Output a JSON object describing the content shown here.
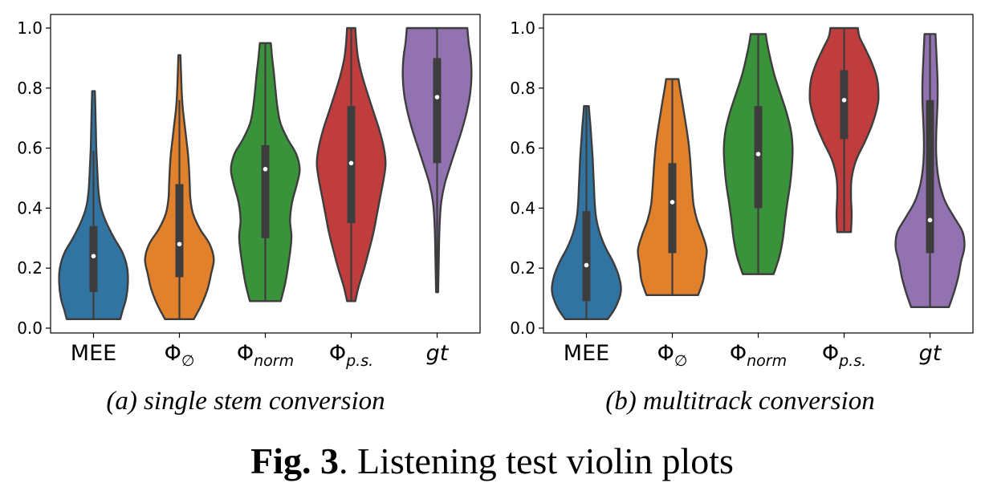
{
  "figure": {
    "label": "Fig. 3",
    "caption": ". Listening test violin plots"
  },
  "categories": [
    {
      "base": "MEE",
      "sub": "",
      "italic": false
    },
    {
      "base": "Φ",
      "sub": "∅",
      "italic": false
    },
    {
      "base": "Φ",
      "sub": "norm",
      "italic": true
    },
    {
      "base": "Φ",
      "sub": "p.s.",
      "italic": true
    },
    {
      "base": "gt",
      "sub": "",
      "italic": true
    }
  ],
  "colors": [
    "#3274a1",
    "#e1812c",
    "#3a923a",
    "#c03d3e",
    "#9372b2"
  ],
  "chart_data": [
    {
      "type": "violin",
      "caption": "(a) single stem conversion",
      "ylim": [
        0,
        1.05
      ],
      "yticks": [
        "0.0",
        "0.2",
        "0.4",
        "0.6",
        "0.8",
        "1.0"
      ],
      "categories": [
        "MEE",
        "Φ∅",
        "Φnorm",
        "Φp.s.",
        "gt"
      ],
      "violins": [
        {
          "min": 0.03,
          "q1": 0.12,
          "median": 0.24,
          "q3": 0.34,
          "whisker_low": 0.03,
          "whisker_high": 0.59,
          "max": 0.79,
          "density": [
            [
              0.03,
              0.78
            ],
            [
              0.06,
              0.85
            ],
            [
              0.1,
              0.95
            ],
            [
              0.15,
              1.0
            ],
            [
              0.2,
              0.98
            ],
            [
              0.25,
              0.85
            ],
            [
              0.3,
              0.6
            ],
            [
              0.35,
              0.38
            ],
            [
              0.4,
              0.22
            ],
            [
              0.45,
              0.15
            ],
            [
              0.5,
              0.12
            ],
            [
              0.55,
              0.1
            ],
            [
              0.6,
              0.08
            ],
            [
              0.65,
              0.07
            ],
            [
              0.7,
              0.06
            ],
            [
              0.75,
              0.05
            ],
            [
              0.79,
              0.04
            ]
          ]
        },
        {
          "min": 0.03,
          "q1": 0.17,
          "median": 0.28,
          "q3": 0.48,
          "whisker_low": 0.03,
          "whisker_high": 0.76,
          "max": 0.91,
          "density": [
            [
              0.03,
              0.42
            ],
            [
              0.08,
              0.65
            ],
            [
              0.13,
              0.82
            ],
            [
              0.18,
              0.92
            ],
            [
              0.23,
              1.0
            ],
            [
              0.28,
              0.88
            ],
            [
              0.33,
              0.6
            ],
            [
              0.38,
              0.4
            ],
            [
              0.43,
              0.32
            ],
            [
              0.48,
              0.3
            ],
            [
              0.53,
              0.28
            ],
            [
              0.58,
              0.25
            ],
            [
              0.63,
              0.2
            ],
            [
              0.68,
              0.15
            ],
            [
              0.73,
              0.1
            ],
            [
              0.78,
              0.07
            ],
            [
              0.84,
              0.05
            ],
            [
              0.91,
              0.03
            ]
          ]
        },
        {
          "min": 0.09,
          "q1": 0.3,
          "median": 0.53,
          "q3": 0.61,
          "whisker_low": 0.09,
          "whisker_high": 0.95,
          "max": 0.95,
          "density": [
            [
              0.09,
              0.45
            ],
            [
              0.15,
              0.58
            ],
            [
              0.22,
              0.68
            ],
            [
              0.3,
              0.76
            ],
            [
              0.36,
              0.72
            ],
            [
              0.42,
              0.78
            ],
            [
              0.48,
              0.92
            ],
            [
              0.53,
              1.0
            ],
            [
              0.58,
              0.9
            ],
            [
              0.63,
              0.65
            ],
            [
              0.68,
              0.45
            ],
            [
              0.73,
              0.36
            ],
            [
              0.79,
              0.3
            ],
            [
              0.85,
              0.25
            ],
            [
              0.9,
              0.2
            ],
            [
              0.95,
              0.16
            ]
          ]
        },
        {
          "min": 0.09,
          "q1": 0.35,
          "median": 0.55,
          "q3": 0.74,
          "whisker_low": 0.09,
          "whisker_high": 1.0,
          "max": 1.0,
          "density": [
            [
              0.09,
              0.12
            ],
            [
              0.14,
              0.22
            ],
            [
              0.2,
              0.38
            ],
            [
              0.26,
              0.52
            ],
            [
              0.32,
              0.65
            ],
            [
              0.38,
              0.75
            ],
            [
              0.44,
              0.85
            ],
            [
              0.5,
              0.95
            ],
            [
              0.55,
              1.0
            ],
            [
              0.6,
              0.95
            ],
            [
              0.66,
              0.82
            ],
            [
              0.72,
              0.65
            ],
            [
              0.78,
              0.48
            ],
            [
              0.84,
              0.32
            ],
            [
              0.9,
              0.2
            ],
            [
              0.95,
              0.15
            ],
            [
              1.0,
              0.12
            ]
          ]
        },
        {
          "min": 0.12,
          "q1": 0.55,
          "median": 0.77,
          "q3": 0.9,
          "whisker_low": 0.12,
          "whisker_high": 1.0,
          "max": 1.0,
          "density": [
            [
              0.12,
              0.03
            ],
            [
              0.18,
              0.04
            ],
            [
              0.24,
              0.05
            ],
            [
              0.3,
              0.06
            ],
            [
              0.36,
              0.08
            ],
            [
              0.42,
              0.12
            ],
            [
              0.48,
              0.22
            ],
            [
              0.54,
              0.38
            ],
            [
              0.6,
              0.55
            ],
            [
              0.66,
              0.72
            ],
            [
              0.72,
              0.86
            ],
            [
              0.78,
              0.96
            ],
            [
              0.84,
              1.0
            ],
            [
              0.9,
              0.98
            ],
            [
              0.95,
              0.92
            ],
            [
              1.0,
              0.88
            ]
          ]
        }
      ]
    },
    {
      "type": "violin",
      "caption": "(b) multitrack conversion",
      "ylim": [
        0,
        1.05
      ],
      "yticks": [
        "0.0",
        "0.2",
        "0.4",
        "0.6",
        "0.8",
        "1.0"
      ],
      "categories": [
        "MEE",
        "Φ∅",
        "Φnorm",
        "Φp.s.",
        "gt"
      ],
      "violins": [
        {
          "min": 0.03,
          "q1": 0.09,
          "median": 0.21,
          "q3": 0.39,
          "whisker_low": 0.03,
          "whisker_high": 0.74,
          "max": 0.74,
          "density": [
            [
              0.03,
              0.62
            ],
            [
              0.07,
              0.85
            ],
            [
              0.12,
              1.0
            ],
            [
              0.17,
              0.95
            ],
            [
              0.22,
              0.78
            ],
            [
              0.27,
              0.55
            ],
            [
              0.32,
              0.38
            ],
            [
              0.37,
              0.28
            ],
            [
              0.42,
              0.24
            ],
            [
              0.47,
              0.22
            ],
            [
              0.52,
              0.2
            ],
            [
              0.57,
              0.18
            ],
            [
              0.62,
              0.15
            ],
            [
              0.67,
              0.12
            ],
            [
              0.71,
              0.09
            ],
            [
              0.74,
              0.07
            ]
          ]
        },
        {
          "min": 0.11,
          "q1": 0.25,
          "median": 0.42,
          "q3": 0.55,
          "whisker_low": 0.11,
          "whisker_high": 0.83,
          "max": 0.83,
          "density": [
            [
              0.11,
              0.75
            ],
            [
              0.16,
              0.9
            ],
            [
              0.21,
              0.95
            ],
            [
              0.26,
              1.0
            ],
            [
              0.31,
              0.88
            ],
            [
              0.36,
              0.72
            ],
            [
              0.41,
              0.62
            ],
            [
              0.46,
              0.58
            ],
            [
              0.51,
              0.55
            ],
            [
              0.56,
              0.52
            ],
            [
              0.61,
              0.48
            ],
            [
              0.66,
              0.42
            ],
            [
              0.71,
              0.35
            ],
            [
              0.76,
              0.28
            ],
            [
              0.8,
              0.22
            ],
            [
              0.83,
              0.18
            ]
          ]
        },
        {
          "min": 0.18,
          "q1": 0.4,
          "median": 0.58,
          "q3": 0.74,
          "whisker_low": 0.18,
          "whisker_high": 0.98,
          "max": 0.98,
          "density": [
            [
              0.18,
              0.45
            ],
            [
              0.24,
              0.62
            ],
            [
              0.3,
              0.72
            ],
            [
              0.36,
              0.78
            ],
            [
              0.42,
              0.85
            ],
            [
              0.48,
              0.93
            ],
            [
              0.54,
              0.98
            ],
            [
              0.6,
              1.0
            ],
            [
              0.66,
              0.95
            ],
            [
              0.72,
              0.82
            ],
            [
              0.78,
              0.65
            ],
            [
              0.84,
              0.48
            ],
            [
              0.9,
              0.35
            ],
            [
              0.95,
              0.26
            ],
            [
              0.98,
              0.22
            ]
          ]
        },
        {
          "min": 0.32,
          "q1": 0.63,
          "median": 0.76,
          "q3": 0.86,
          "whisker_low": 0.32,
          "whisker_high": 1.0,
          "max": 1.0,
          "density": [
            [
              0.32,
              0.2
            ],
            [
              0.38,
              0.22
            ],
            [
              0.44,
              0.2
            ],
            [
              0.5,
              0.22
            ],
            [
              0.56,
              0.35
            ],
            [
              0.62,
              0.6
            ],
            [
              0.68,
              0.82
            ],
            [
              0.74,
              0.97
            ],
            [
              0.78,
              1.0
            ],
            [
              0.83,
              0.96
            ],
            [
              0.88,
              0.82
            ],
            [
              0.93,
              0.62
            ],
            [
              0.97,
              0.45
            ],
            [
              1.0,
              0.4
            ]
          ]
        },
        {
          "min": 0.07,
          "q1": 0.25,
          "median": 0.36,
          "q3": 0.76,
          "whisker_low": 0.07,
          "whisker_high": 0.98,
          "max": 0.98,
          "density": [
            [
              0.07,
              0.55
            ],
            [
              0.12,
              0.7
            ],
            [
              0.17,
              0.82
            ],
            [
              0.22,
              0.9
            ],
            [
              0.27,
              1.0
            ],
            [
              0.32,
              0.95
            ],
            [
              0.37,
              0.7
            ],
            [
              0.42,
              0.45
            ],
            [
              0.47,
              0.3
            ],
            [
              0.52,
              0.22
            ],
            [
              0.58,
              0.18
            ],
            [
              0.64,
              0.18
            ],
            [
              0.7,
              0.2
            ],
            [
              0.76,
              0.22
            ],
            [
              0.82,
              0.22
            ],
            [
              0.88,
              0.2
            ],
            [
              0.93,
              0.18
            ],
            [
              0.98,
              0.16
            ]
          ]
        }
      ]
    }
  ]
}
